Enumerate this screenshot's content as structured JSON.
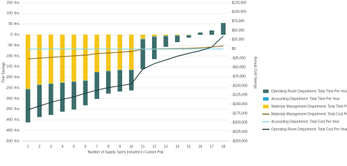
{
  "chart_data": {
    "type": "bar",
    "x_label": "Number of Supply Types Included in Custom Pak",
    "y_label": "Time Savings",
    "y2_label": "Annual Cost Savings",
    "categories": [
      "1",
      "2",
      "3",
      "4",
      "5",
      "6",
      "7",
      "8",
      "9",
      "10",
      "11",
      "12",
      "13",
      "14",
      "15",
      "16",
      "17",
      "18"
    ],
    "ylim": [
      -500,
      150
    ],
    "yticks": [
      {
        "value": 150,
        "label": "150. hrs."
      },
      {
        "value": 100,
        "label": "100. hrs."
      },
      {
        "value": 50,
        "label": "50. hrs."
      },
      {
        "value": 0,
        "label": "0. hrs."
      },
      {
        "value": -50,
        "label": "-50. hrs."
      },
      {
        "value": -100,
        "label": "-100. hrs."
      },
      {
        "value": -150,
        "label": "-150. hrs."
      },
      {
        "value": -200,
        "label": "-200. hrs."
      },
      {
        "value": -250,
        "label": "-250. hrs."
      },
      {
        "value": -300,
        "label": "-300. hrs."
      },
      {
        "value": -350,
        "label": "-350. hrs."
      },
      {
        "value": -400,
        "label": "-400. hrs."
      },
      {
        "value": -450,
        "label": "-450. hrs."
      },
      {
        "value": -500,
        "label": "-500. hrs."
      }
    ],
    "y2lim": [
      -250000,
      125000
    ],
    "y2ticks": [
      {
        "value": 125000,
        "label": "$125,000"
      },
      {
        "value": 100000,
        "label": "$100,000"
      },
      {
        "value": 75000,
        "label": "$75,000"
      },
      {
        "value": 50000,
        "label": "$50,000"
      },
      {
        "value": 25000,
        "label": "$25,000"
      },
      {
        "value": 0,
        "label": "$0"
      },
      {
        "value": -25000,
        "label": "-$25,000"
      },
      {
        "value": -50000,
        "label": "-$50,000"
      },
      {
        "value": -75000,
        "label": "-$75,000"
      },
      {
        "value": -100000,
        "label": "-$100,000"
      },
      {
        "value": -125000,
        "label": "-$125,000"
      },
      {
        "value": -150000,
        "label": "-$150,000"
      },
      {
        "value": -175000,
        "label": "-$175,000"
      },
      {
        "value": -200000,
        "label": "-$200,000"
      },
      {
        "value": -225000,
        "label": "-$225,000"
      },
      {
        "value": -250000,
        "label": "-$250,000"
      }
    ],
    "grid": true,
    "series": [
      {
        "name": "Operating Room Department: Total Time Per Year",
        "type": "bar",
        "color": "#3b6d6b",
        "values": [
          -155,
          -150,
          -145,
          -135,
          -130,
          -115,
          -125,
          -105,
          -100,
          -95,
          -140,
          -105,
          -50,
          -30,
          -10,
          10,
          20,
          55
        ]
      },
      {
        "name": "Accounting Department: Total Time Per Year",
        "type": "bar",
        "color": "#2aa7d0",
        "values": [
          -2,
          -2,
          -2,
          -2,
          -2,
          -2,
          -2,
          -2,
          -2,
          -2,
          -2,
          -2,
          -2,
          -2,
          -2,
          -1,
          -1,
          -1
        ]
      },
      {
        "name": "Materials Management Department: Total Time Per Year",
        "type": "bar",
        "color": "#f5c518",
        "values": [
          -255,
          -235,
          -230,
          -225,
          -220,
          -215,
          -175,
          -170,
          -165,
          -165,
          -20,
          -8,
          -5,
          -3,
          -2,
          0,
          0,
          0
        ]
      },
      {
        "name": "Materials Management Department: Total Cost Per Year",
        "type": "line",
        "axis": "y2",
        "color": "#8a6a1a",
        "values": [
          -27000,
          -25000,
          -23000,
          -21000,
          -19000,
          -17000,
          -13000,
          -11000,
          -9000,
          -7000,
          -1000,
          0,
          500,
          1000,
          1500,
          3000,
          5000,
          8000
        ]
      },
      {
        "name": "Accounting Department: Total Cost Per Year",
        "type": "line",
        "axis": "y2",
        "color": "#7fd3e6",
        "values": [
          -500,
          -500,
          -500,
          -500,
          -500,
          -500,
          -500,
          -500,
          -500,
          -500,
          -500,
          -500,
          -500,
          -500,
          -500,
          -300,
          -300,
          -300
        ]
      },
      {
        "name": "Operating Room Department: Total Cost Per Year",
        "type": "line",
        "axis": "y2",
        "color": "#1f3b3b",
        "values": [
          -165000,
          -155000,
          -145000,
          -137000,
          -130000,
          -120000,
          -112000,
          -105000,
          -100000,
          -95000,
          -55000,
          -40000,
          -30000,
          -20000,
          -12000,
          -5000,
          5000,
          35000
        ]
      }
    ]
  }
}
